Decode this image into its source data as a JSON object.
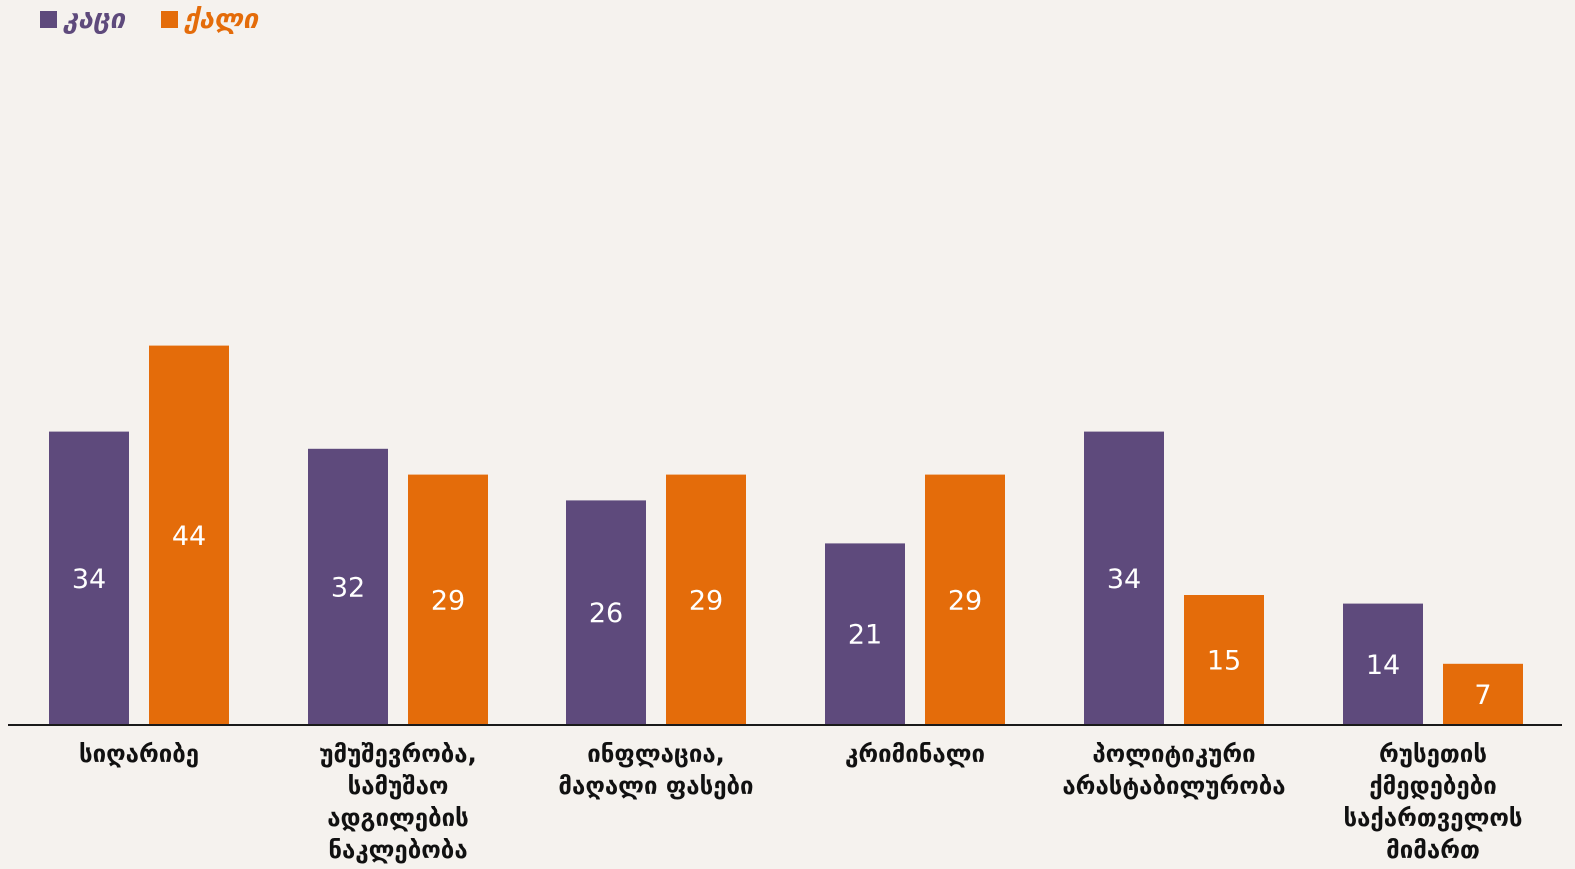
{
  "chart_data": {
    "type": "bar",
    "categories": [
      "სიღარიბე",
      "უმუშევრობა,\nსამუშაო\nადგილების\nნაკლებობა",
      "ინფლაცია,\nმაღალი ფასები",
      "კრიმინალი",
      "პოლიტიკური\nარასტაბილურობა",
      "რუსეთის\nქმედებები\nსაქართველოს\nმიმართ"
    ],
    "series": [
      {
        "name": "კაცი",
        "color": "#5e4a7c",
        "values": [
          34,
          32,
          26,
          21,
          34,
          14
        ],
        "labels": [
          "34",
          "32",
          "26",
          "21",
          "34",
          "14"
        ]
      },
      {
        "name": "ქალი",
        "color": "#e46c0a",
        "values": [
          44,
          29,
          29,
          29,
          15,
          7
        ],
        "labels": [
          "44",
          "29",
          "29",
          "29",
          "15",
          "7"
        ]
      }
    ],
    "legend_position": "top-left",
    "grid": false
  }
}
